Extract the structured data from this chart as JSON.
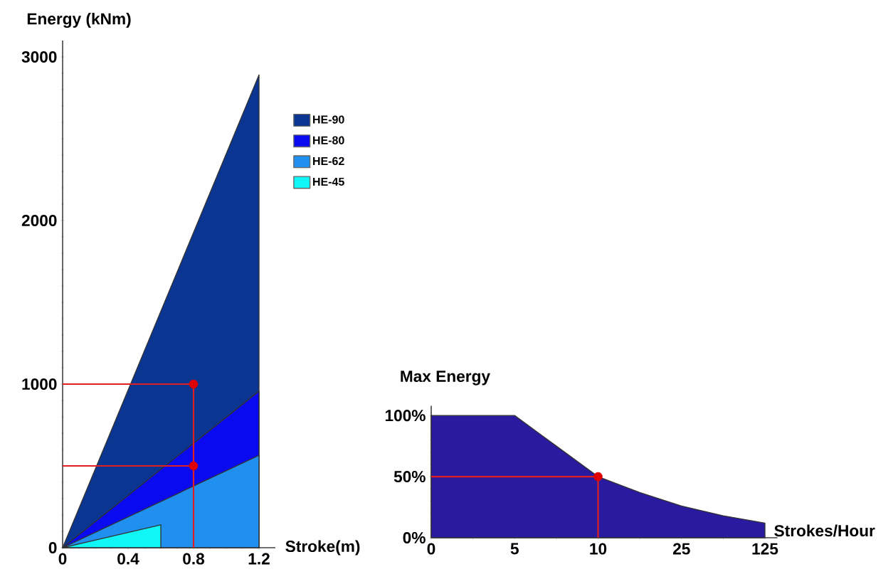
{
  "chart_data": [
    {
      "type": "area",
      "xlabel": "Stroke(m)",
      "ylabel": "Energy (kNm)",
      "xlim": [
        0,
        1.3
      ],
      "ylim": [
        0,
        3100
      ],
      "xticks": [
        0,
        0.4,
        0.8,
        1.2
      ],
      "yticks": [
        0,
        1000,
        2000,
        3000
      ],
      "legend": "right",
      "series": [
        {
          "name": "HE-90",
          "color": "#0a3591",
          "x": [
            0,
            1.2
          ],
          "values": [
            0,
            2890
          ]
        },
        {
          "name": "HE-80",
          "color": "#0a0af0",
          "x": [
            0,
            1.2
          ],
          "values": [
            0,
            957
          ]
        },
        {
          "name": "HE-62",
          "color": "#1f8ff0",
          "x": [
            0,
            1.2
          ],
          "values": [
            0,
            565
          ]
        },
        {
          "name": "HE-45",
          "color": "#10f5f5",
          "x": [
            0,
            0.6
          ],
          "values": [
            0,
            140
          ]
        },
        {
          "type": "line",
          "color": "#e02020",
          "x": [
            0,
            0.8,
            0.8
          ],
          "values": [
            1000,
            1000,
            0
          ]
        },
        {
          "type": "line",
          "color": "#e02020",
          "x": [
            0,
            0.8
          ],
          "values": [
            500,
            500
          ]
        },
        {
          "type": "scatter",
          "color": "#e00000",
          "marker": "circle",
          "x": [
            0.8,
            0.8
          ],
          "values": [
            1000,
            500
          ]
        }
      ]
    },
    {
      "type": "area",
      "xlabel": "Strokes/Hour",
      "ylabel": "Max Energy",
      "categories": [
        "0",
        null,
        "5",
        null,
        "10",
        null,
        "25",
        null,
        "125"
      ],
      "ylim": [
        0,
        108
      ],
      "yticks": [
        {
          "value": 0,
          "label": "0%"
        },
        {
          "value": 50,
          "label": "50%"
        },
        {
          "value": 100,
          "label": "100%"
        }
      ],
      "series": [
        {
          "color": "#2a1aa0",
          "values": [
            100,
            100,
            100,
            75,
            50,
            37,
            26,
            18,
            12
          ]
        },
        {
          "type": "line",
          "color": "#e02020",
          "x": [
            "0",
            "10",
            "10"
          ],
          "values": [
            50,
            50,
            0
          ]
        },
        {
          "type": "scatter",
          "color": "#e00000",
          "marker": "circle",
          "x": [
            "10"
          ],
          "values": [
            50
          ]
        }
      ]
    }
  ]
}
